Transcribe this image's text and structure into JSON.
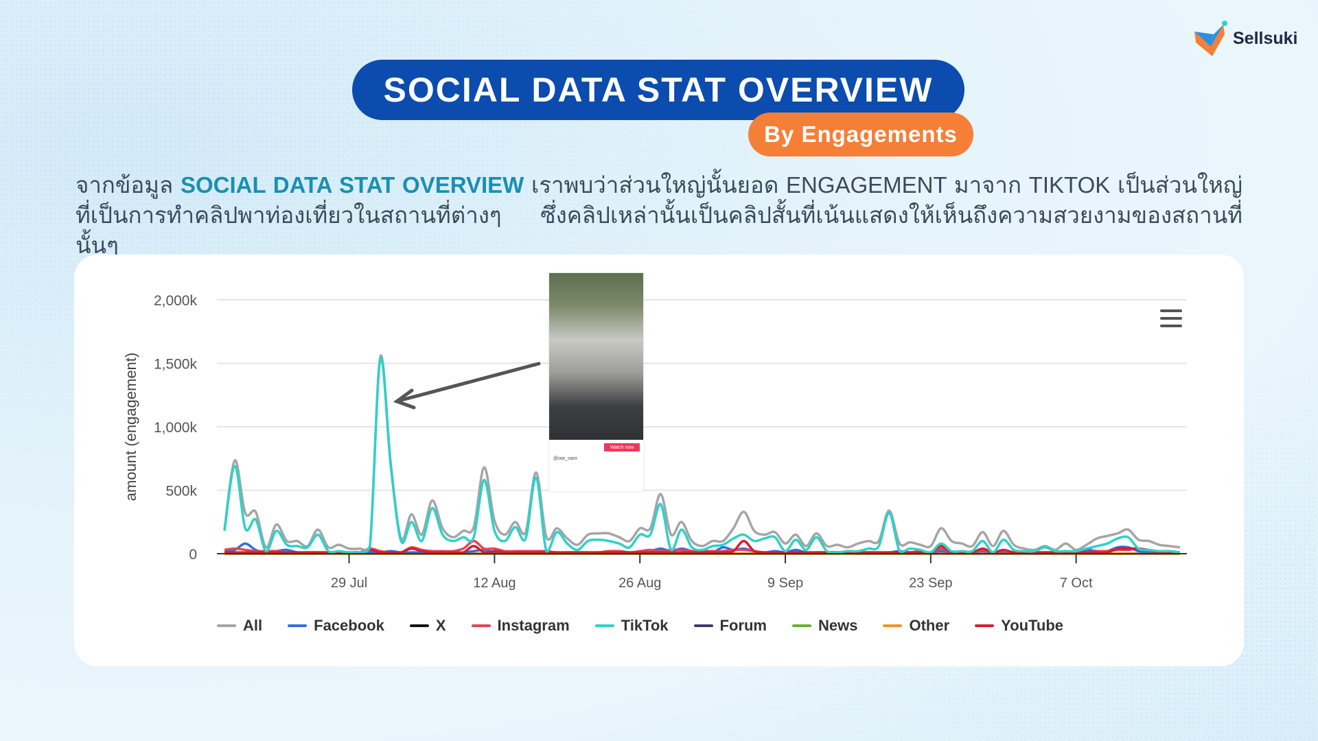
{
  "header": {
    "title": "SOCIAL DATA STAT OVERVIEW",
    "subtitle": "By Engagements",
    "logo": "Sellsuki"
  },
  "paragraph": {
    "intro": "จากข้อมูล ",
    "highlight": "SOCIAL DATA STAT OVERVIEW",
    "body": " เราพบว่าส่วนใหญ่นั้นยอด ENGAGEMENT มาจาก TIKTOK เป็นส่วนใหญ่ ที่เป็นการทำคลิปพาท่องเที่ยวในสถานที่ต่างๆ ซึ่งคลิปเหล่านั้นเป็นคลิปสั้นที่เน้นแสดงให้เห็นถึงความสวยงามของสถานที่นั้นๆ"
  },
  "inset": {
    "watch_label": "Watch now",
    "handle": "@oor_saro"
  },
  "colors": {
    "title_bg": "#0b4cae",
    "subtitle_bg": "#f57f36",
    "highlight": "#1a8fb0"
  },
  "chart_data": {
    "type": "line",
    "ylabel": "amount (engagement)",
    "ylim": [
      0,
      2000
    ],
    "yticks": [
      {
        "v": 0,
        "label": "0"
      },
      {
        "v": 500,
        "label": "500k"
      },
      {
        "v": 1000,
        "label": "1,000k"
      },
      {
        "v": 1500,
        "label": "1,500k"
      },
      {
        "v": 2000,
        "label": "2,000k"
      }
    ],
    "xticks": [
      "29 Jul",
      "12 Aug",
      "26 Aug",
      "9 Sep",
      "23 Sep",
      "7 Oct"
    ],
    "grid": true,
    "legend": "bottom",
    "x": [
      "17 Jul",
      "18 Jul",
      "19 Jul",
      "20 Jul",
      "21 Jul",
      "22 Jul",
      "23 Jul",
      "24 Jul",
      "25 Jul",
      "26 Jul",
      "27 Jul",
      "28 Jul",
      "29 Jul",
      "30 Jul",
      "31 Jul",
      "1 Aug",
      "2 Aug",
      "3 Aug",
      "4 Aug",
      "5 Aug",
      "6 Aug",
      "7 Aug",
      "8 Aug",
      "9 Aug",
      "10 Aug",
      "11 Aug",
      "12 Aug",
      "13 Aug",
      "14 Aug",
      "15 Aug",
      "16 Aug",
      "17 Aug",
      "18 Aug",
      "19 Aug",
      "20 Aug",
      "21 Aug",
      "22 Aug",
      "23 Aug",
      "24 Aug",
      "25 Aug",
      "26 Aug",
      "27 Aug",
      "28 Aug",
      "29 Aug",
      "30 Aug",
      "31 Aug",
      "1 Sep",
      "2 Sep",
      "3 Sep",
      "4 Sep",
      "5 Sep",
      "6 Sep",
      "7 Sep",
      "8 Sep",
      "9 Sep",
      "10 Sep",
      "11 Sep",
      "12 Sep",
      "13 Sep",
      "14 Sep",
      "15 Sep",
      "16 Sep",
      "17 Sep",
      "18 Sep",
      "19 Sep",
      "20 Sep",
      "21 Sep",
      "22 Sep",
      "23 Sep",
      "24 Sep",
      "25 Sep",
      "26 Sep",
      "27 Sep",
      "28 Sep",
      "29 Sep",
      "30 Sep",
      "1 Oct",
      "2 Oct",
      "3 Oct",
      "4 Oct",
      "5 Oct",
      "6 Oct",
      "7 Oct",
      "8 Oct",
      "9 Oct",
      "10 Oct",
      "11 Oct",
      "12 Oct",
      "13 Oct",
      "14 Oct",
      "15 Oct",
      "16 Oct",
      "17 Oct"
    ],
    "series": [
      {
        "name": "All",
        "color": "#a5a5a5",
        "values": [
          190,
          735,
          320,
          330,
          50,
          230,
          100,
          100,
          60,
          190,
          50,
          70,
          40,
          40,
          60,
          1550,
          720,
          120,
          310,
          150,
          420,
          200,
          130,
          180,
          210,
          680,
          260,
          150,
          250,
          170,
          640,
          130,
          200,
          120,
          70,
          150,
          160,
          160,
          130,
          100,
          200,
          200,
          470,
          150,
          250,
          100,
          60,
          100,
          100,
          200,
          330,
          180,
          150,
          170,
          80,
          150,
          60,
          160,
          60,
          70,
          50,
          80,
          100,
          100,
          340,
          80,
          90,
          70,
          60,
          200,
          100,
          80,
          60,
          170,
          60,
          180,
          70,
          40,
          30,
          60,
          30,
          80,
          30,
          70,
          120,
          140,
          160,
          190,
          110,
          100,
          70,
          60,
          50
        ]
      },
      {
        "name": "Facebook",
        "color": "#2f6fe0",
        "values": [
          20,
          30,
          80,
          30,
          10,
          20,
          30,
          10,
          10,
          10,
          10,
          10,
          10,
          10,
          10,
          10,
          20,
          10,
          10,
          10,
          10,
          10,
          10,
          10,
          20,
          30,
          10,
          10,
          10,
          10,
          20,
          10,
          10,
          10,
          10,
          10,
          10,
          10,
          20,
          10,
          10,
          20,
          40,
          20,
          40,
          20,
          10,
          10,
          50,
          30,
          40,
          20,
          10,
          20,
          10,
          30,
          10,
          10,
          10,
          10,
          10,
          10,
          10,
          10,
          10,
          20,
          10,
          10,
          10,
          20,
          10,
          10,
          10,
          20,
          10,
          10,
          10,
          10,
          10,
          10,
          10,
          10,
          10,
          30,
          20,
          20,
          50,
          50,
          20,
          10,
          10,
          10,
          10
        ]
      },
      {
        "name": "X",
        "color": "#111111",
        "values": [
          0,
          0,
          0,
          0,
          0,
          0,
          0,
          0,
          0,
          0,
          0,
          0,
          0,
          0,
          0,
          0,
          0,
          0,
          0,
          0,
          0,
          0,
          0,
          0,
          0,
          0,
          0,
          0,
          0,
          0,
          0,
          0,
          0,
          0,
          0,
          0,
          0,
          0,
          0,
          0,
          0,
          0,
          0,
          0,
          0,
          0,
          0,
          0,
          0,
          0,
          0,
          0,
          0,
          0,
          0,
          0,
          0,
          0,
          0,
          0,
          0,
          0,
          0,
          0,
          0,
          0,
          0,
          0,
          0,
          0,
          0,
          0,
          0,
          0,
          0,
          0,
          0,
          0,
          0,
          0,
          0,
          0,
          0,
          0,
          0,
          0,
          0,
          0,
          0,
          0,
          0,
          0,
          0
        ]
      },
      {
        "name": "Instagram",
        "color": "#e5435b",
        "values": [
          30,
          40,
          30,
          20,
          20,
          20,
          10,
          10,
          10,
          10,
          10,
          10,
          10,
          10,
          40,
          20,
          10,
          10,
          50,
          30,
          20,
          20,
          20,
          40,
          100,
          40,
          40,
          20,
          20,
          20,
          20,
          20,
          10,
          10,
          10,
          10,
          10,
          20,
          20,
          10,
          20,
          30,
          20,
          30,
          30,
          20,
          20,
          20,
          20,
          30,
          30,
          20,
          10,
          10,
          10,
          10,
          10,
          10,
          10,
          10,
          10,
          10,
          10,
          10,
          10,
          10,
          10,
          20,
          10,
          40,
          10,
          10,
          10,
          30,
          10,
          20,
          10,
          10,
          10,
          10,
          10,
          10,
          10,
          10,
          20,
          20,
          30,
          30,
          40,
          20,
          20,
          10,
          10
        ]
      },
      {
        "name": "TikTok",
        "color": "#2ed1c9",
        "values": [
          180,
          690,
          200,
          270,
          20,
          180,
          70,
          60,
          50,
          150,
          20,
          20,
          10,
          10,
          50,
          1530,
          700,
          100,
          250,
          100,
          360,
          150,
          100,
          130,
          130,
          580,
          180,
          100,
          210,
          120,
          600,
          20,
          170,
          80,
          30,
          100,
          110,
          100,
          80,
          50,
          150,
          150,
          390,
          30,
          190,
          50,
          30,
          60,
          70,
          120,
          150,
          100,
          120,
          130,
          20,
          110,
          30,
          130,
          20,
          10,
          20,
          20,
          40,
          60,
          320,
          20,
          40,
          30,
          10,
          80,
          20,
          20,
          20,
          100,
          10,
          110,
          30,
          20,
          20,
          50,
          20,
          20,
          20,
          40,
          60,
          80,
          120,
          130,
          40,
          30,
          20,
          20,
          10
        ]
      },
      {
        "name": "Forum",
        "color": "#3c3c6e",
        "values": [
          0,
          0,
          0,
          0,
          0,
          0,
          0,
          0,
          0,
          0,
          0,
          0,
          0,
          0,
          0,
          0,
          0,
          0,
          0,
          0,
          0,
          0,
          0,
          0,
          0,
          0,
          0,
          0,
          0,
          0,
          0,
          0,
          0,
          0,
          0,
          0,
          0,
          0,
          0,
          0,
          0,
          0,
          0,
          0,
          0,
          0,
          0,
          0,
          0,
          0,
          0,
          0,
          0,
          0,
          0,
          0,
          0,
          0,
          0,
          0,
          0,
          0,
          0,
          0,
          0,
          0,
          0,
          0,
          0,
          0,
          0,
          0,
          0,
          0,
          0,
          0,
          0,
          0,
          0,
          0,
          0,
          0,
          0,
          0,
          0,
          0,
          0,
          0,
          0,
          0,
          0,
          0,
          0
        ]
      },
      {
        "name": "News",
        "color": "#67b32c",
        "values": [
          0,
          0,
          0,
          0,
          0,
          0,
          0,
          0,
          0,
          0,
          0,
          0,
          0,
          0,
          0,
          0,
          0,
          0,
          0,
          0,
          0,
          0,
          0,
          0,
          0,
          0,
          0,
          0,
          0,
          0,
          0,
          0,
          0,
          0,
          0,
          0,
          0,
          0,
          0,
          0,
          0,
          0,
          0,
          0,
          0,
          0,
          0,
          0,
          0,
          0,
          0,
          0,
          0,
          0,
          0,
          0,
          0,
          0,
          0,
          0,
          0,
          0,
          0,
          0,
          0,
          0,
          0,
          0,
          0,
          0,
          0,
          0,
          0,
          0,
          0,
          0,
          0,
          0,
          0,
          0,
          0,
          0,
          0,
          0,
          0,
          0,
          0,
          0,
          0,
          0,
          0,
          0,
          0
        ]
      },
      {
        "name": "Other",
        "color": "#f3932a",
        "values": [
          0,
          0,
          0,
          0,
          0,
          0,
          0,
          0,
          0,
          0,
          0,
          0,
          0,
          0,
          0,
          0,
          0,
          0,
          0,
          0,
          0,
          0,
          0,
          0,
          0,
          0,
          0,
          0,
          0,
          0,
          0,
          0,
          0,
          0,
          0,
          0,
          0,
          0,
          0,
          0,
          0,
          0,
          0,
          0,
          0,
          0,
          0,
          0,
          0,
          0,
          0,
          0,
          0,
          0,
          0,
          0,
          0,
          0,
          0,
          0,
          0,
          0,
          0,
          0,
          0,
          0,
          0,
          0,
          0,
          0,
          0,
          0,
          0,
          0,
          0,
          0,
          0,
          0,
          0,
          0,
          0,
          0,
          0,
          0,
          0,
          0,
          0,
          0,
          0,
          0,
          0,
          0,
          0
        ]
      },
      {
        "name": "YouTube",
        "color": "#d4202f",
        "values": [
          10,
          10,
          10,
          10,
          10,
          10,
          10,
          10,
          10,
          10,
          10,
          10,
          10,
          10,
          30,
          10,
          10,
          10,
          40,
          20,
          10,
          10,
          10,
          10,
          60,
          10,
          20,
          10,
          10,
          10,
          10,
          10,
          10,
          10,
          10,
          10,
          10,
          10,
          10,
          10,
          10,
          10,
          10,
          10,
          10,
          10,
          10,
          10,
          10,
          20,
          100,
          20,
          10,
          10,
          10,
          10,
          10,
          10,
          10,
          10,
          10,
          10,
          10,
          10,
          10,
          10,
          10,
          10,
          10,
          60,
          10,
          10,
          10,
          40,
          10,
          30,
          10,
          10,
          10,
          10,
          10,
          10,
          10,
          10,
          10,
          10,
          40,
          40,
          40,
          30,
          10,
          10,
          10
        ]
      }
    ]
  }
}
